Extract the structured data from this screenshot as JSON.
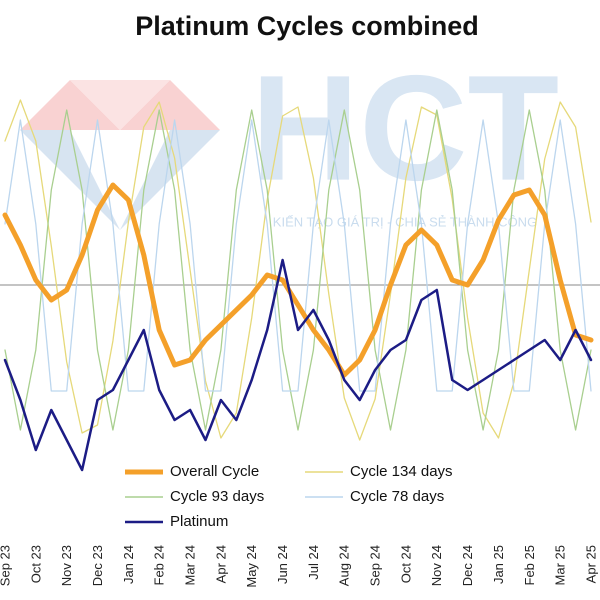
{
  "chart_data": {
    "type": "line",
    "title": "Platinum Cycles combined",
    "watermark": {
      "logo": "HCT",
      "slogan": "KIẾN TẠO GIÁ TRỊ - CHIA SẺ THÀNH CÔNG"
    },
    "categories": [
      "Sep 23",
      null,
      "Oct 23",
      null,
      "Nov 23",
      null,
      "Dec 23",
      null,
      "Jan 24",
      null,
      "Feb 24",
      null,
      "Mar 24",
      null,
      "Apr 24",
      null,
      "May 24",
      null,
      "Jun 24",
      null,
      "Jul 24",
      null,
      "Aug 24",
      null,
      "Sep 24",
      null,
      "Oct 24",
      null,
      "Nov 24",
      null,
      "Dec 24",
      null,
      "Jan 25",
      null,
      "Feb 25",
      null,
      "Mar 25",
      null,
      "Apr 25"
    ],
    "reference_line": 195,
    "legend": "bottom",
    "series": [
      {
        "name": "Cycle 134 days",
        "color": "#e6d97a",
        "width": 1.3,
        "values": [
          339,
          380,
          339,
          234,
          118,
          47,
          55,
          139,
          258,
          353,
          378,
          322,
          210,
          99,
          42,
          67,
          162,
          280,
          364,
          373,
          302,
          186,
          82,
          40,
          81,
          186,
          302,
          373,
          365,
          281,
          162,
          67,
          42,
          98,
          210,
          321,
          378,
          353,
          258
        ]
      },
      {
        "name": "Cycle 93 days",
        "color": "#a9cf8f",
        "width": 1.3,
        "values": [
          130,
          50,
          130,
          290,
          370,
          290,
          130,
          50,
          130,
          290,
          370,
          290,
          130,
          50,
          130,
          290,
          370,
          290,
          130,
          50,
          130,
          290,
          370,
          290,
          130,
          50,
          130,
          290,
          370,
          290,
          130,
          50,
          130,
          290,
          370,
          290,
          130,
          50,
          130
        ]
      },
      {
        "name": "Cycle 78 days",
        "color": "#bcd6ee",
        "width": 1.3,
        "values": [
          256,
          360,
          256,
          89,
          89,
          256,
          360,
          256,
          89,
          89,
          256,
          360,
          256,
          89,
          89,
          256,
          360,
          256,
          89,
          89,
          256,
          360,
          256,
          89,
          89,
          256,
          360,
          256,
          89,
          89,
          256,
          360,
          256,
          89,
          89,
          256,
          360,
          256,
          89
        ]
      },
      {
        "name": "Overall Cycle",
        "color": "#f4a02a",
        "width": 5,
        "values": [
          265,
          235,
          200,
          180,
          190,
          225,
          270,
          295,
          280,
          225,
          150,
          115,
          120,
          140,
          155,
          170,
          185,
          205,
          200,
          175,
          150,
          130,
          105,
          120,
          150,
          195,
          235,
          250,
          235,
          200,
          195,
          220,
          260,
          285,
          290,
          265,
          200,
          145,
          140
        ]
      },
      {
        "name": "Platinum",
        "color": "#1c1c85",
        "width": 2.5,
        "values": [
          120,
          80,
          30,
          70,
          40,
          10,
          80,
          90,
          120,
          150,
          90,
          60,
          70,
          40,
          80,
          60,
          100,
          150,
          220,
          150,
          170,
          140,
          100,
          80,
          110,
          130,
          140,
          180,
          190,
          100,
          90,
          100,
          110,
          120,
          130,
          140,
          120,
          150,
          120
        ]
      }
    ]
  }
}
